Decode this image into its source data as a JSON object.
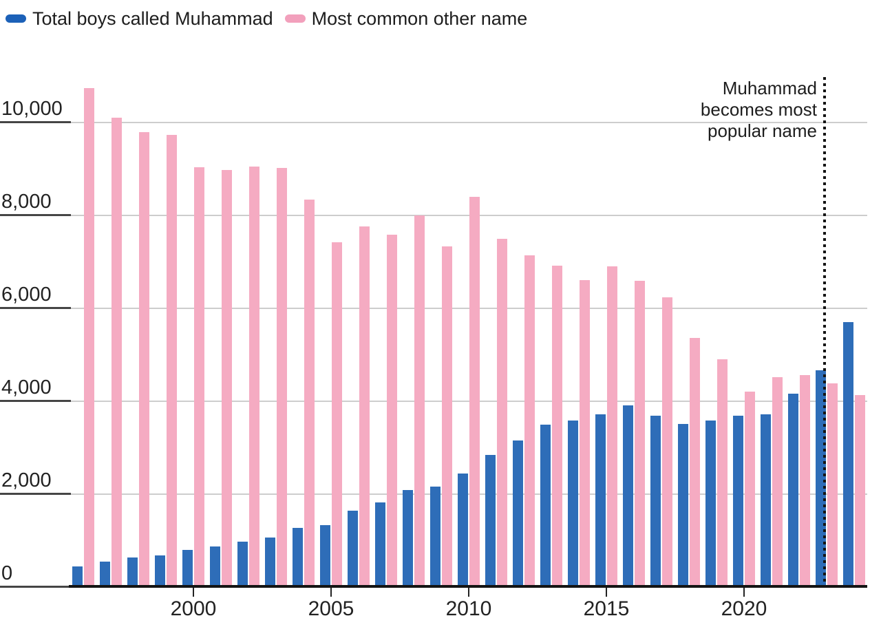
{
  "legend": [
    {
      "label": "Total boys called Muhammad",
      "swatch": "legend-swatch-blue",
      "color": "#1c61b8"
    },
    {
      "label": "Most common other name",
      "swatch": "legend-swatch-pink",
      "color": "#f2a0bc"
    }
  ],
  "annotation": {
    "lines": [
      "Muhammad",
      "becomes most",
      "popular name"
    ],
    "at_year": 2023
  },
  "chart_data": {
    "type": "bar",
    "title": "",
    "xlabel": "",
    "ylabel": "",
    "x": [
      1996,
      1997,
      1998,
      1999,
      2000,
      2001,
      2002,
      2003,
      2004,
      2005,
      2006,
      2007,
      2008,
      2009,
      2010,
      2011,
      2012,
      2013,
      2014,
      2015,
      2016,
      2017,
      2018,
      2019,
      2020,
      2021,
      2022,
      2023,
      2024
    ],
    "series": [
      {
        "name": "Total boys called Muhammad",
        "color": "#2e6db8",
        "values": [
          450,
          550,
          640,
          680,
          800,
          870,
          980,
          1070,
          1280,
          1330,
          1640,
          1820,
          2090,
          2160,
          2440,
          2845,
          3155,
          3500,
          3585,
          3725,
          3905,
          3695,
          3510,
          3590,
          3695,
          3715,
          4170,
          4660,
          5700
        ]
      },
      {
        "name": "Most common other name",
        "color": "#f5abc2",
        "values": [
          10740,
          10105,
          9795,
          9735,
          9040,
          8980,
          9055,
          9020,
          8340,
          7420,
          7765,
          7585,
          8000,
          7340,
          8400,
          7490,
          7140,
          6920,
          6610,
          6910,
          6590,
          6230,
          5370,
          4910,
          4210,
          4515,
          4570,
          4380,
          4130
        ]
      }
    ],
    "yticks": [
      0,
      2000,
      4000,
      6000,
      8000,
      10000
    ],
    "ytick_labels": [
      "0",
      "2,000",
      "4,000",
      "6,000",
      "8,000",
      "10,000"
    ],
    "xticks": [
      2000,
      2005,
      2010,
      2015,
      2020
    ],
    "ylim": [
      0,
      11000
    ],
    "grid": true,
    "legend_position": "top-left",
    "annotation_line_year": 2023
  },
  "colors": {
    "gridline": "#cdcdcd",
    "grid_label_underline": "#454545",
    "axis": "#141414",
    "dotted_line": "#141414",
    "text": "#1d1d1d"
  }
}
